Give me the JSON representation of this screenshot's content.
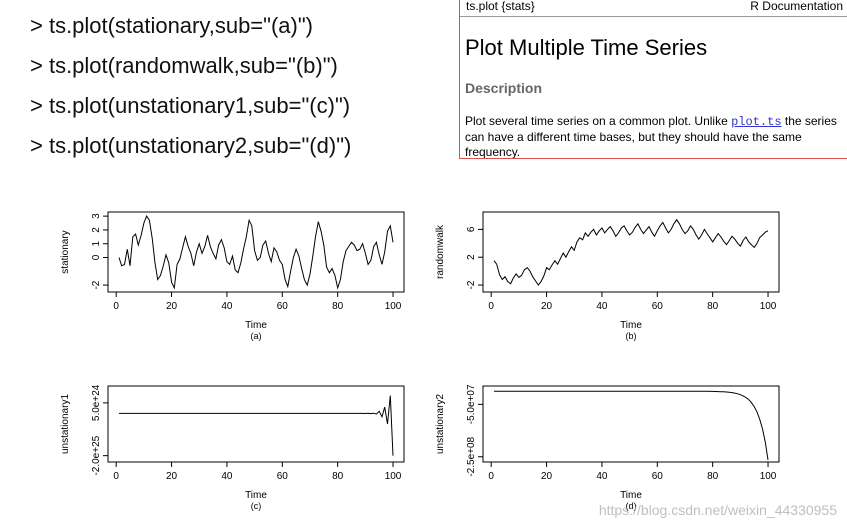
{
  "code_lines": [
    "> ts.plot(stationary,sub=\"(a)\")",
    "> ts.plot(randomwalk,sub=\"(b)\")",
    "> ts.plot(unstationary1,sub=\"(c)\")",
    "> ts.plot(unstationary2,sub=\"(d)\")"
  ],
  "help": {
    "package": "ts.plot {stats}",
    "doc_label": "R Documentation",
    "title": "Plot Multiple Time Series",
    "section": "Description",
    "desc_before": "Plot several time series on a common plot. Unlike ",
    "desc_link": "plot.ts",
    "desc_after": " the series can have a different time bases, but they should have the same frequency."
  },
  "watermark": "https://blog.csdn.net/weixin_44330955",
  "chart_data": [
    {
      "type": "line",
      "xlabel": "Time",
      "sub": "(a)",
      "ylabel": "stationary",
      "xlim": [
        1,
        100
      ],
      "xticks": [
        0,
        20,
        40,
        60,
        80,
        100
      ],
      "xtick_labels": [
        "0",
        "20",
        "40",
        "60",
        "80",
        "100"
      ],
      "ylim": [
        -2.5,
        3.3
      ],
      "yticks": [
        -2,
        0,
        1,
        2,
        3
      ],
      "ytick_labels": [
        "-2",
        "0",
        "1",
        "2",
        "3"
      ],
      "x_start": 1,
      "y": [
        0.0,
        -0.6,
        -0.5,
        0.6,
        -0.6,
        1.5,
        1.7,
        0.9,
        1.6,
        2.5,
        3.0,
        2.7,
        1.4,
        -0.4,
        -1.6,
        -1.3,
        -0.6,
        0.2,
        -0.4,
        -1.8,
        -2.2,
        -0.5,
        -0.1,
        0.7,
        1.5,
        0.8,
        0.3,
        -0.6,
        0.4,
        1.0,
        0.3,
        0.8,
        1.6,
        0.8,
        0.3,
        -0.1,
        0.9,
        1.3,
        0.7,
        -0.3,
        -0.5,
        0.1,
        -0.9,
        -1.1,
        -0.4,
        0.6,
        1.5,
        2.7,
        2.3,
        0.5,
        -0.2,
        0.0,
        0.9,
        1.2,
        0.3,
        -0.3,
        0.7,
        0.4,
        -0.2,
        -0.5,
        -1.6,
        -2.1,
        -1.0,
        0.0,
        0.6,
        0.1,
        -0.8,
        -1.6,
        -2.0,
        -1.2,
        0.1,
        1.5,
        2.6,
        1.9,
        0.9,
        -0.7,
        -1.1,
        -0.8,
        -1.3,
        -2.2,
        -1.6,
        -0.3,
        0.5,
        0.8,
        1.1,
        0.9,
        0.5,
        0.6,
        1.0,
        0.3,
        -0.5,
        -0.2,
        0.8,
        1.1,
        0.2,
        -0.5,
        0.4,
        1.9,
        2.3,
        1.1
      ]
    },
    {
      "type": "line",
      "xlabel": "Time",
      "sub": "(b)",
      "ylabel": "randomwalk",
      "xlim": [
        1,
        100
      ],
      "xticks": [
        0,
        20,
        40,
        60,
        80,
        100
      ],
      "xtick_labels": [
        "0",
        "20",
        "40",
        "60",
        "80",
        "100"
      ],
      "ylim": [
        -3,
        8.5
      ],
      "yticks": [
        -2,
        2,
        6
      ],
      "ytick_labels": [
        "-2",
        "2",
        "6"
      ],
      "x_start": 1,
      "y": [
        1.5,
        1.0,
        -0.5,
        -1.2,
        -0.8,
        -1.5,
        -1.8,
        -1.0,
        -0.4,
        -0.9,
        -0.6,
        0.2,
        0.5,
        0.0,
        -0.8,
        -1.4,
        -2.0,
        -1.5,
        -0.7,
        0.5,
        0.2,
        0.9,
        1.5,
        1.0,
        1.8,
        2.6,
        2.0,
        2.8,
        3.5,
        3.0,
        4.2,
        4.8,
        4.5,
        5.5,
        5.0,
        5.6,
        6.0,
        5.2,
        5.8,
        6.2,
        5.5,
        6.0,
        6.4,
        5.8,
        5.0,
        5.5,
        6.2,
        6.5,
        5.8,
        5.2,
        5.6,
        6.3,
        6.8,
        6.0,
        5.4,
        5.9,
        6.4,
        5.6,
        5.0,
        5.8,
        6.5,
        7.0,
        6.2,
        5.5,
        6.0,
        6.8,
        7.4,
        6.8,
        6.0,
        5.4,
        5.8,
        6.5,
        6.0,
        5.2,
        4.6,
        5.2,
        6.0,
        5.4,
        4.8,
        4.2,
        4.8,
        5.4,
        4.9,
        4.3,
        3.8,
        4.4,
        5.0,
        4.6,
        4.0,
        3.6,
        4.4,
        4.9,
        4.2,
        3.8,
        3.4,
        4.0,
        4.8,
        5.2,
        5.6,
        5.8
      ]
    },
    {
      "type": "line",
      "xlabel": "Time",
      "sub": "(c)",
      "ylabel": "unstationary1",
      "xlim": [
        1,
        100
      ],
      "xticks": [
        0,
        20,
        40,
        60,
        80,
        100
      ],
      "xtick_labels": [
        "0",
        "20",
        "40",
        "60",
        "80",
        "100"
      ],
      "ylim": [
        -2.3e+25,
        1.3e+25
      ],
      "yticks": [
        -2e+25,
        5e+24
      ],
      "ytick_labels": [
        "-2.0e+25",
        "5.0e+24"
      ],
      "x_start": 1,
      "flat_until": 88,
      "flat_value": 0,
      "y_tail": [
        0,
        2e+22,
        -3e+22,
        5e+22,
        -8e+22,
        1e+23,
        -3e+23,
        1e+24,
        -1.6e+24,
        3e+24,
        -5e+24,
        8.5e+24,
        -2e+25
      ]
    },
    {
      "type": "line",
      "xlabel": "Time",
      "sub": "(d)",
      "ylabel": "unstationary2",
      "xlim": [
        1,
        100
      ],
      "xticks": [
        0,
        20,
        40,
        60,
        80,
        100
      ],
      "xtick_labels": [
        "0",
        "20",
        "40",
        "60",
        "80",
        "100"
      ],
      "ylim": [
        -270000000.0,
        20000000.0
      ],
      "yticks": [
        -50000000.0,
        -250000000.0
      ],
      "ytick_labels": [
        "-5.0e+07",
        "-2.5e+08"
      ],
      "x_start": 1,
      "decay_rate": 0.3,
      "y_final": -262000000.0
    }
  ]
}
